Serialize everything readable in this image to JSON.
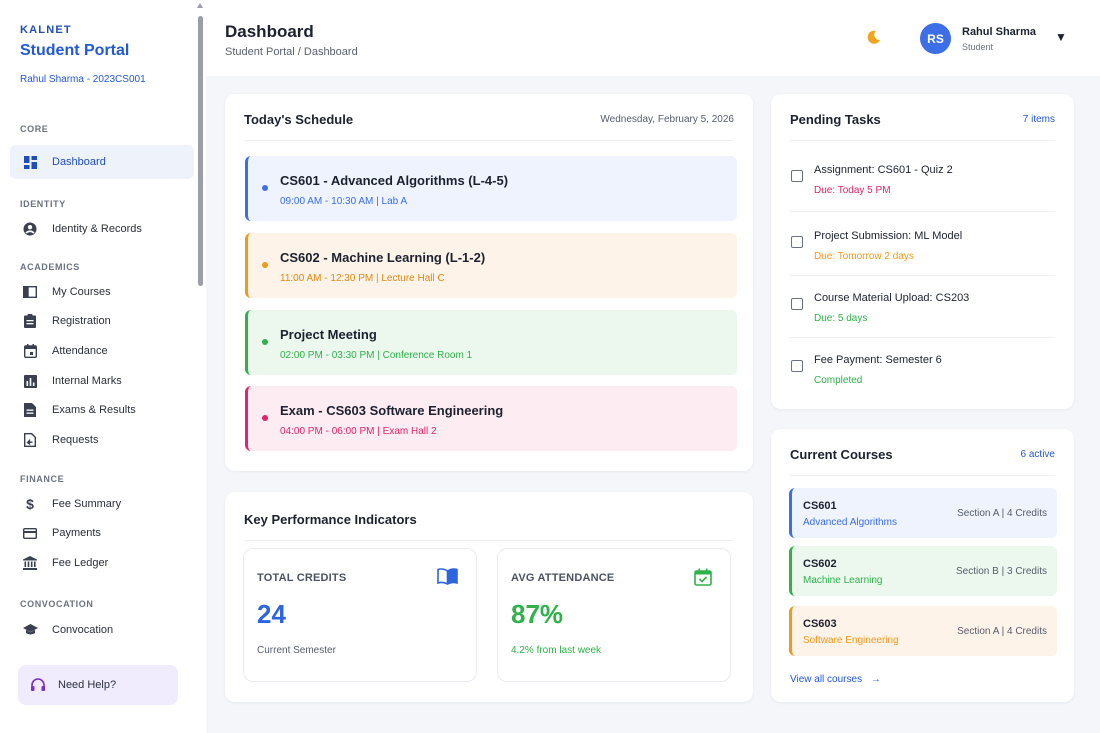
{
  "brand": {
    "kicker": "KALNET",
    "title": "Student Portal",
    "user_line": "Rahul Sharma - 2023CS001"
  },
  "sidebar": {
    "groups": [
      {
        "label": "CORE",
        "items": [
          {
            "label": "Dashboard",
            "icon": "dashboard-icon",
            "active": true
          }
        ]
      },
      {
        "label": "IDENTITY",
        "items": [
          {
            "label": "Identity & Records",
            "icon": "user-circle-icon"
          }
        ]
      },
      {
        "label": "ACADEMICS",
        "items": [
          {
            "label": "My Courses",
            "icon": "book-icon"
          },
          {
            "label": "Registration",
            "icon": "clipboard-icon"
          },
          {
            "label": "Attendance",
            "icon": "calendar-icon"
          },
          {
            "label": "Internal Marks",
            "icon": "bar-chart-icon"
          },
          {
            "label": "Exams & Results",
            "icon": "document-icon"
          },
          {
            "label": "Requests",
            "icon": "request-file-icon"
          }
        ]
      },
      {
        "label": "FINANCE",
        "items": [
          {
            "label": "Fee Summary",
            "icon": "dollar-icon"
          },
          {
            "label": "Payments",
            "icon": "credit-card-icon"
          },
          {
            "label": "Fee Ledger",
            "icon": "bank-icon"
          }
        ]
      },
      {
        "label": "CONVOCATION",
        "items": [
          {
            "label": "Convocation",
            "icon": "graduation-cap-icon"
          }
        ]
      }
    ],
    "help_label": "Need Help?"
  },
  "header": {
    "title": "Dashboard",
    "breadcrumb": "Student Portal / Dashboard",
    "theme_icon": "moon-icon",
    "user": {
      "initials": "RS",
      "name": "Rahul Sharma",
      "role": "Student"
    }
  },
  "schedule": {
    "title": "Today's Schedule",
    "date": "Wednesday, February 5, 2026",
    "items": [
      {
        "title": "CS601 - Advanced Algorithms (L-4-5)",
        "detail": "09:00 AM - 10:30 AM | Lab A",
        "color": "#3c6ee8",
        "bg": "#eef3fd"
      },
      {
        "title": "CS602 - Machine Learning (L-1-2)",
        "detail": "11:00 AM - 12:30 PM | Lecture Hall C",
        "color": "#f09a1a",
        "bg": "#fdf3e9"
      },
      {
        "title": "Project Meeting",
        "detail": "02:00 PM - 03:30 PM | Conference Room 1",
        "color": "#2eb24a",
        "bg": "#ecf8ee"
      },
      {
        "title": "Exam - CS603 Software Engineering",
        "detail": "04:00 PM - 06:00 PM | Exam Hall 2",
        "color": "#e0256a",
        "bg": "#fdecf1"
      }
    ]
  },
  "kpi": {
    "title": "Key Performance Indicators",
    "cards": [
      {
        "label": "TOTAL CREDITS",
        "value": "24",
        "note": "Current Semester",
        "color": "#2d64e0",
        "note_color": "#555c6b",
        "icon": "book-open-icon"
      },
      {
        "label": "AVG ATTENDANCE",
        "value": "87%",
        "note": "4.2% from last week",
        "color": "#2eb24a",
        "note_color": "#2eb24a",
        "icon": "calendar-check-icon"
      }
    ]
  },
  "tasks": {
    "title": "Pending Tasks",
    "count": "7 items",
    "items": [
      {
        "title": "Assignment: CS601 - Quiz 2",
        "due": "Due: Today 5 PM",
        "color": "#e0256a"
      },
      {
        "title": "Project Submission: ML Model",
        "due": "Due: Tomorrow 2 days",
        "color": "#f09a1a"
      },
      {
        "title": "Course Material Upload: CS203",
        "due": "Due: 5 days",
        "color": "#2eb24a"
      },
      {
        "title": "Fee Payment: Semester 6",
        "due": "Completed",
        "color": "#2eb24a"
      }
    ]
  },
  "courses": {
    "title": "Current Courses",
    "count": "6 active",
    "items": [
      {
        "code": "CS601",
        "name": "Advanced Algorithms",
        "info": "Section A | 4 Credits",
        "color": "#3c6ee8",
        "bg": "#eef3fd"
      },
      {
        "code": "CS602",
        "name": "Machine Learning",
        "info": "Section B | 3 Credits",
        "color": "#2eb24a",
        "bg": "#ecf8ee"
      },
      {
        "code": "CS603",
        "name": "Software Engineering",
        "info": "Section A | 4 Credits",
        "color": "#f09a1a",
        "bg": "#fdf3e9"
      }
    ],
    "view_all": "View all courses"
  }
}
